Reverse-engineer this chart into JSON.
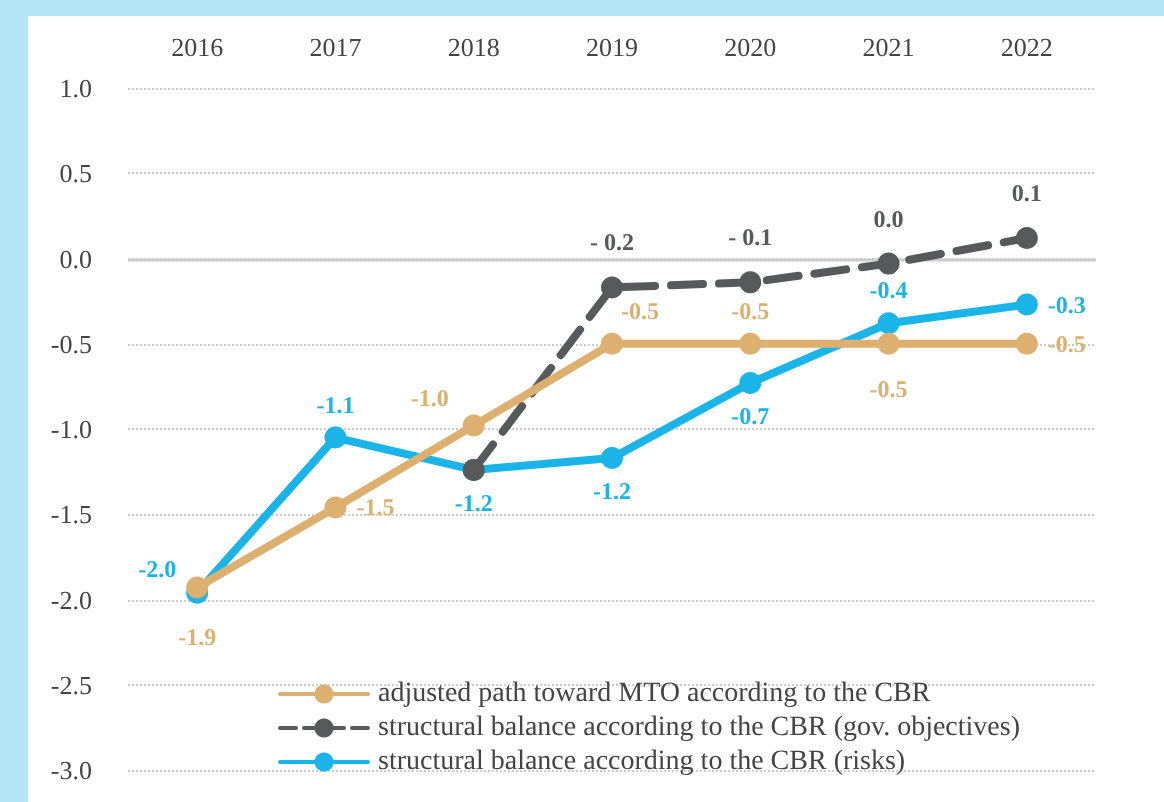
{
  "chart_data": {
    "type": "line",
    "categories": [
      "2016",
      "2017",
      "2018",
      "2019",
      "2020",
      "2021",
      "2022"
    ],
    "series": [
      {
        "name": "adjusted path toward MTO according to the CBR",
        "color": "#ddb06f",
        "values": [
          -1.93,
          -1.46,
          -0.98,
          -0.5,
          -0.5,
          -0.5,
          -0.5
        ],
        "value_labels": [
          "-1.9",
          "-1.5",
          "-1.0",
          "-0.5",
          "-0.5",
          "-0.5",
          "-0.5"
        ],
        "line_style": "solid"
      },
      {
        "name": "structural balance according to the CBR (gov. objectives)",
        "color": "#58595b",
        "values": [
          null,
          null,
          -1.24,
          -0.17,
          -0.14,
          -0.03,
          0.12
        ],
        "value_labels": [
          null,
          null,
          null,
          "- 0.2",
          "- 0.1",
          "0.0",
          "0.1"
        ],
        "line_style": "dashed"
      },
      {
        "name": "structural balance according to the CBR (risks)",
        "color": "#1ab4e8",
        "values": [
          -1.96,
          -1.05,
          -1.24,
          -1.17,
          -0.73,
          -0.38,
          -0.27
        ],
        "value_labels": [
          "-2.0",
          "-1.1",
          "-1.2",
          "-1.2",
          "-0.7",
          "-0.4",
          "-0.3"
        ],
        "line_style": "solid"
      }
    ],
    "ylim": [
      -3,
      1
    ],
    "yticks": [
      {
        "value": -3,
        "label": "-3.0"
      },
      -2.5,
      {
        "value": -2,
        "label": "-2.0"
      },
      -1.5,
      {
        "value": -1,
        "label": "-1.0"
      },
      -0.5,
      {
        "value": 0,
        "label": "0.0"
      },
      0.5,
      {
        "value": 1,
        "label": "1.0"
      }
    ],
    "grid": "y",
    "marker": "circle",
    "legend": "bottom",
    "ref_lines": [
      {
        "axis": "y",
        "value": 0,
        "color": "#cccccc"
      }
    ]
  }
}
